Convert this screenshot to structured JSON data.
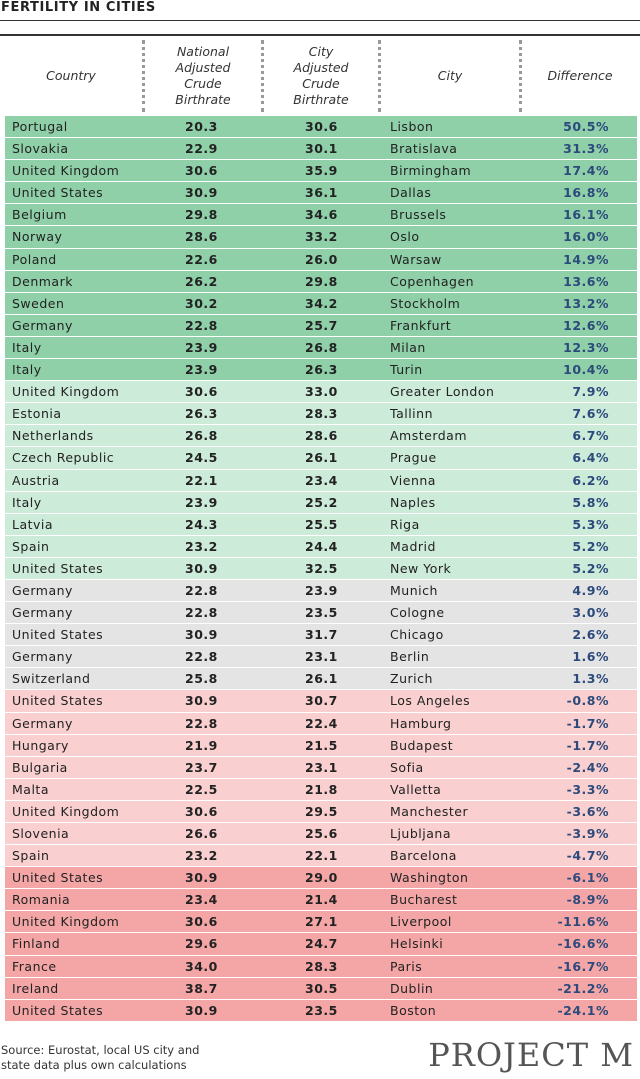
{
  "title": "FERTILITY IN CITIES",
  "colors": {
    "strong_positive": "#8fd0a8",
    "positive": "#cdebd9",
    "neutral": "#e4e4e4",
    "negative": "#f9cfcf",
    "strong_negative": "#f4a6a6"
  },
  "chart_data": {
    "type": "table",
    "title": "FERTILITY IN CITIES",
    "columns": [
      "Country",
      "National\nAdjusted\nCrude\nBirthrate",
      "City\nAdjusted\nCrude\nBirthrate",
      "City",
      "Difference"
    ],
    "rows": [
      {
        "country": "Portugal",
        "national": "20.3",
        "city_rate": "30.6",
        "city": "Lisbon",
        "difference": "50.5%",
        "band": "strong_positive"
      },
      {
        "country": "Slovakia",
        "national": "22.9",
        "city_rate": "30.1",
        "city": "Bratislava",
        "difference": "31.3%",
        "band": "strong_positive"
      },
      {
        "country": "United Kingdom",
        "national": "30.6",
        "city_rate": "35.9",
        "city": "Birmingham",
        "difference": "17.4%",
        "band": "strong_positive"
      },
      {
        "country": "United States",
        "national": "30.9",
        "city_rate": "36.1",
        "city": "Dallas",
        "difference": "16.8%",
        "band": "strong_positive"
      },
      {
        "country": "Belgium",
        "national": "29.8",
        "city_rate": "34.6",
        "city": "Brussels",
        "difference": "16.1%",
        "band": "strong_positive"
      },
      {
        "country": "Norway",
        "national": "28.6",
        "city_rate": "33.2",
        "city": "Oslo",
        "difference": "16.0%",
        "band": "strong_positive"
      },
      {
        "country": "Poland",
        "national": "22.6",
        "city_rate": "26.0",
        "city": "Warsaw",
        "difference": "14.9%",
        "band": "strong_positive"
      },
      {
        "country": "Denmark",
        "national": "26.2",
        "city_rate": "29.8",
        "city": "Copenhagen",
        "difference": "13.6%",
        "band": "strong_positive"
      },
      {
        "country": "Sweden",
        "national": "30.2",
        "city_rate": "34.2",
        "city": "Stockholm",
        "difference": "13.2%",
        "band": "strong_positive"
      },
      {
        "country": "Germany",
        "national": "22.8",
        "city_rate": "25.7",
        "city": "Frankfurt",
        "difference": "12.6%",
        "band": "strong_positive"
      },
      {
        "country": "Italy",
        "national": "23.9",
        "city_rate": "26.8",
        "city": "Milan",
        "difference": "12.3%",
        "band": "strong_positive"
      },
      {
        "country": "Italy",
        "national": "23.9",
        "city_rate": "26.3",
        "city": "Turin",
        "difference": "10.4%",
        "band": "strong_positive"
      },
      {
        "country": "United Kingdom",
        "national": "30.6",
        "city_rate": "33.0",
        "city": "Greater London",
        "difference": "7.9%",
        "band": "positive"
      },
      {
        "country": "Estonia",
        "national": "26.3",
        "city_rate": "28.3",
        "city": "Tallinn",
        "difference": "7.6%",
        "band": "positive"
      },
      {
        "country": "Netherlands",
        "national": "26.8",
        "city_rate": "28.6",
        "city": "Amsterdam",
        "difference": "6.7%",
        "band": "positive"
      },
      {
        "country": "Czech Republic",
        "national": "24.5",
        "city_rate": "26.1",
        "city": "Prague",
        "difference": "6.4%",
        "band": "positive"
      },
      {
        "country": "Austria",
        "national": "22.1",
        "city_rate": "23.4",
        "city": "Vienna",
        "difference": "6.2%",
        "band": "positive"
      },
      {
        "country": "Italy",
        "national": "23.9",
        "city_rate": "25.2",
        "city": "Naples",
        "difference": "5.8%",
        "band": "positive"
      },
      {
        "country": "Latvia",
        "national": "24.3",
        "city_rate": "25.5",
        "city": "Riga",
        "difference": "5.3%",
        "band": "positive"
      },
      {
        "country": "Spain",
        "national": "23.2",
        "city_rate": "24.4",
        "city": "Madrid",
        "difference": "5.2%",
        "band": "positive"
      },
      {
        "country": "United States",
        "national": "30.9",
        "city_rate": "32.5",
        "city": "New York",
        "difference": "5.2%",
        "band": "positive"
      },
      {
        "country": "Germany",
        "national": "22.8",
        "city_rate": "23.9",
        "city": "Munich",
        "difference": "4.9%",
        "band": "neutral"
      },
      {
        "country": "Germany",
        "national": "22.8",
        "city_rate": "23.5",
        "city": "Cologne",
        "difference": "3.0%",
        "band": "neutral"
      },
      {
        "country": "United States",
        "national": "30.9",
        "city_rate": "31.7",
        "city": "Chicago",
        "difference": "2.6%",
        "band": "neutral"
      },
      {
        "country": "Germany",
        "national": "22.8",
        "city_rate": "23.1",
        "city": "Berlin",
        "difference": "1.6%",
        "band": "neutral"
      },
      {
        "country": "Switzerland",
        "national": "25.8",
        "city_rate": "26.1",
        "city": "Zurich",
        "difference": "1.3%",
        "band": "neutral"
      },
      {
        "country": "United States",
        "national": "30.9",
        "city_rate": "30.7",
        "city": "Los Angeles",
        "difference": "-0.8%",
        "band": "negative"
      },
      {
        "country": "Germany",
        "national": "22.8",
        "city_rate": "22.4",
        "city": "Hamburg",
        "difference": "-1.7%",
        "band": "negative"
      },
      {
        "country": "Hungary",
        "national": "21.9",
        "city_rate": "21.5",
        "city": "Budapest",
        "difference": "-1.7%",
        "band": "negative"
      },
      {
        "country": "Bulgaria",
        "national": "23.7",
        "city_rate": "23.1",
        "city": "Sofia",
        "difference": "-2.4%",
        "band": "negative"
      },
      {
        "country": "Malta",
        "national": "22.5",
        "city_rate": "21.8",
        "city": "Valletta",
        "difference": "-3.3%",
        "band": "negative"
      },
      {
        "country": "United Kingdom",
        "national": "30.6",
        "city_rate": "29.5",
        "city": "Manchester",
        "difference": "-3.6%",
        "band": "negative"
      },
      {
        "country": "Slovenia",
        "national": "26.6",
        "city_rate": "25.6",
        "city": "Ljubljana",
        "difference": "-3.9%",
        "band": "negative"
      },
      {
        "country": "Spain",
        "national": "23.2",
        "city_rate": "22.1",
        "city": "Barcelona",
        "difference": "-4.7%",
        "band": "negative"
      },
      {
        "country": "United States",
        "national": "30.9",
        "city_rate": "29.0",
        "city": "Washington",
        "difference": "-6.1%",
        "band": "strong_negative"
      },
      {
        "country": "Romania",
        "national": "23.4",
        "city_rate": "21.4",
        "city": "Bucharest",
        "difference": "-8.9%",
        "band": "strong_negative"
      },
      {
        "country": "United Kingdom",
        "national": "30.6",
        "city_rate": "27.1",
        "city": "Liverpool",
        "difference": "-11.6%",
        "band": "strong_negative"
      },
      {
        "country": "Finland",
        "national": "29.6",
        "city_rate": "24.7",
        "city": "Helsinki",
        "difference": "-16.6%",
        "band": "strong_negative"
      },
      {
        "country": "France",
        "national": "34.0",
        "city_rate": "28.3",
        "city": "Paris",
        "difference": "-16.7%",
        "band": "strong_negative"
      },
      {
        "country": "Ireland",
        "national": "38.7",
        "city_rate": "30.5",
        "city": "Dublin",
        "difference": "-21.2%",
        "band": "strong_negative"
      },
      {
        "country": "United States",
        "national": "30.9",
        "city_rate": "23.5",
        "city": "Boston",
        "difference": "-24.1%",
        "band": "strong_negative"
      }
    ]
  },
  "footer": {
    "source": "Source: Eurostat, local US city and\nstate data plus own calculations",
    "logo": "PROJECT M"
  }
}
